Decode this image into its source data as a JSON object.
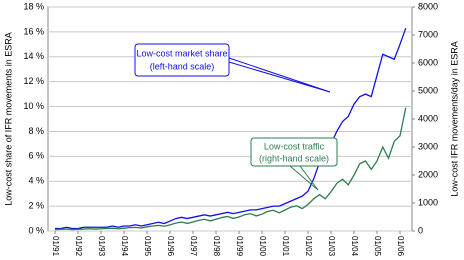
{
  "chart_data": {
    "type": "line",
    "y_label": "Low-cost share of IFR movements in ESRA",
    "y2_label": "Low-cost IFR movements/day in ESRA",
    "annotations": [
      {
        "lines": [
          "Low-cost market share",
          "(left-hand scale)"
        ]
      },
      {
        "lines": [
          "Low-cost traffic",
          "(right-hand scale)"
        ]
      }
    ],
    "categories": [
      "01/91",
      null,
      null,
      null,
      "01/92",
      null,
      null,
      null,
      "01/93",
      null,
      null,
      null,
      "01/94",
      null,
      null,
      null,
      "01/95",
      null,
      null,
      null,
      "01/96",
      null,
      null,
      null,
      "01/97",
      null,
      null,
      null,
      "01/98",
      null,
      null,
      null,
      "01/99",
      null,
      null,
      null,
      "01/00",
      null,
      null,
      null,
      "01/01",
      null,
      null,
      null,
      "01/02",
      null,
      null,
      null,
      "01/03",
      null,
      null,
      null,
      "01/04",
      null,
      null,
      null,
      "01/05",
      null,
      null,
      null,
      "01/06",
      null
    ],
    "series": [
      {
        "name": "Low-cost market share",
        "color": "#1010ee",
        "axis": "y",
        "values": [
          0.2,
          0.2,
          0.3,
          0.2,
          0.2,
          0.3,
          0.3,
          0.3,
          0.3,
          0.3,
          0.4,
          0.3,
          0.4,
          0.4,
          0.5,
          0.4,
          0.5,
          0.6,
          0.7,
          0.6,
          0.8,
          1.0,
          1.1,
          1.0,
          1.1,
          1.2,
          1.3,
          1.2,
          1.3,
          1.4,
          1.5,
          1.4,
          1.5,
          1.6,
          1.7,
          1.7,
          1.8,
          1.9,
          2.0,
          2.0,
          2.2,
          2.4,
          2.6,
          2.8,
          3.2,
          4.2,
          5.5,
          6.0,
          7.0,
          8.0,
          8.8,
          9.2,
          10.2,
          10.8,
          11.0,
          10.8,
          12.5,
          14.2,
          14.0,
          13.8,
          15.0,
          16.3
        ]
      },
      {
        "name": "Low-cost traffic",
        "color": "#2e7d4f",
        "axis": "y2",
        "values": [
          50,
          60,
          70,
          50,
          60,
          70,
          80,
          70,
          80,
          90,
          100,
          80,
          100,
          120,
          130,
          110,
          150,
          180,
          200,
          170,
          220,
          280,
          320,
          270,
          320,
          380,
          420,
          360,
          420,
          480,
          520,
          450,
          500,
          580,
          620,
          540,
          600,
          700,
          740,
          650,
          750,
          850,
          900,
          800,
          950,
          1150,
          1300,
          1150,
          1400,
          1700,
          1850,
          1650,
          2000,
          2400,
          2500,
          2200,
          2500,
          3000,
          2600,
          3200,
          3400,
          4400
        ]
      }
    ],
    "ylim": [
      0,
      18
    ],
    "yticks": [
      {
        "value": 0,
        "label": "0 %"
      },
      {
        "value": 2,
        "label": "2 %"
      },
      {
        "value": 4,
        "label": "4 %"
      },
      {
        "value": 6,
        "label": "6 %"
      },
      {
        "value": 8,
        "label": "8 %"
      },
      {
        "value": 10,
        "label": "10 %"
      },
      {
        "value": 12,
        "label": "12 %"
      },
      {
        "value": 14,
        "label": "14 %"
      },
      {
        "value": 16,
        "label": "16 %"
      },
      {
        "value": 18,
        "label": "18 %"
      }
    ],
    "y2lim": [
      0,
      8000
    ],
    "y2ticks": [
      0,
      1000,
      2000,
      3000,
      4000,
      5000,
      6000,
      7000,
      8000
    ],
    "grid": true
  }
}
